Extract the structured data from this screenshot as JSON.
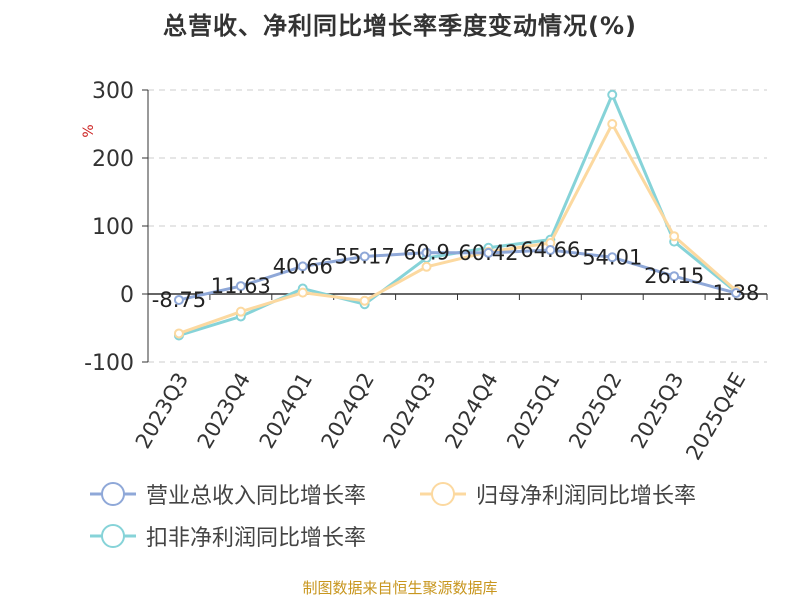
{
  "chart_data": {
    "type": "line",
    "title": "总营收、净利同比增长率季度变动情况(%)",
    "ylabel": "%",
    "xlabel": "",
    "categories": [
      "2023Q3",
      "2023Q4",
      "2024Q1",
      "2024Q2",
      "2024Q3",
      "2024Q4",
      "2025Q1",
      "2025Q2",
      "2025Q3",
      "2025Q4E"
    ],
    "ylim": [
      -100,
      300
    ],
    "yticks": [
      300,
      200,
      100,
      0,
      -100
    ],
    "grid": true,
    "legend_position": "bottom",
    "series": [
      {
        "name": "营业总收入同比增长率",
        "color": "#8fa8d8",
        "values": [
          -8.75,
          11.63,
          40.66,
          55.17,
          60.9,
          60.42,
          64.66,
          54.01,
          26.15,
          1.38
        ],
        "data_labels": [
          "-8.75",
          "11.63",
          "40.66",
          "55.17",
          "60.9",
          "60.42",
          "64.66",
          "54.01",
          "26.15",
          "1.38"
        ]
      },
      {
        "name": "归母净利润同比增长率",
        "color": "#fcd9a0",
        "values": [
          -58,
          -26,
          2,
          -10,
          40,
          62,
          75,
          250,
          85,
          5
        ]
      },
      {
        "name": "扣非净利润同比增长率",
        "color": "#86d3d8",
        "values": [
          -61,
          -33,
          8,
          -15,
          53,
          68,
          80,
          293,
          77,
          3
        ]
      }
    ]
  },
  "source": "制图数据来自恒生聚源数据库"
}
